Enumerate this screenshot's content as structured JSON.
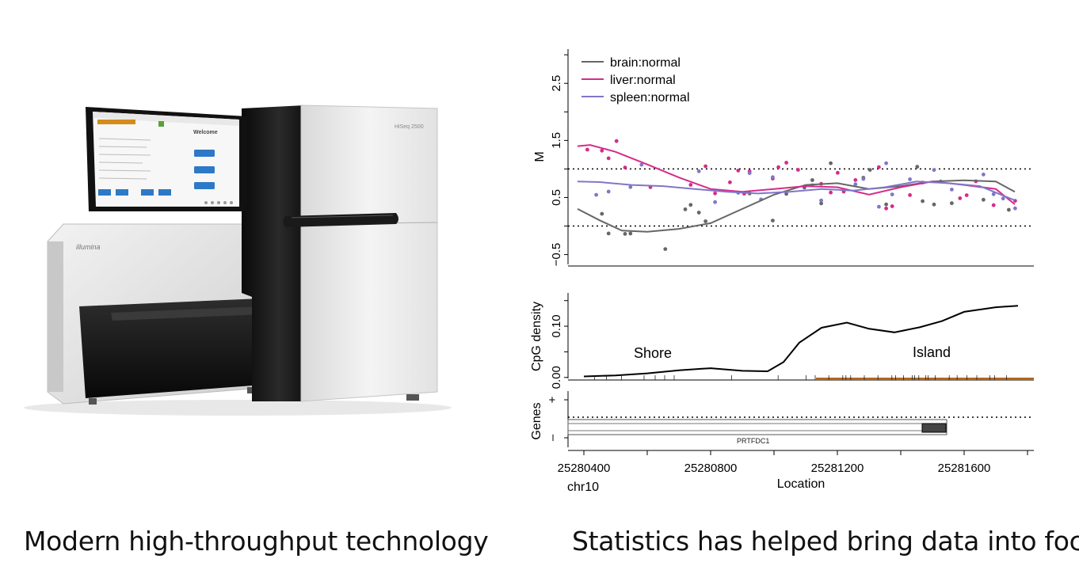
{
  "captions": {
    "left": "Modern high-throughput technology",
    "right": "Statistics has helped bring data into focus"
  },
  "machine": {
    "brand": "illumina",
    "model": "HiSeq 2500",
    "screen_title": "Welcome"
  },
  "colors": {
    "brain": "#666666",
    "liver": "#d62b8a",
    "spleen": "#7f77c9",
    "cpg_rug": "#b5651d"
  },
  "chart_data": [
    {
      "type": "scatter",
      "ylabel": "M",
      "yticks": [
        "−0.5",
        "0.5",
        "1.5",
        "2.5"
      ],
      "ytick_values": [
        -0.5,
        0.5,
        1.5,
        2.5
      ],
      "ylim": [
        -0.7,
        3.1
      ],
      "xlim": [
        25280350,
        25281820
      ],
      "reference_lines": [
        0,
        1
      ],
      "legend": [
        "brain:normal",
        "liver:normal",
        "spleen:normal"
      ],
      "legend_placement": "top-left",
      "series": [
        {
          "name": "brain:normal",
          "color": "#666666",
          "smooth_x": [
            25280380,
            25280450,
            25280520,
            25280600,
            25280700,
            25280800,
            25280900,
            25281000,
            25281100,
            25281200,
            25281300,
            25281400,
            25281500,
            25281600,
            25281700,
            25281760
          ],
          "smooth_y": [
            0.3,
            0.1,
            -0.08,
            -0.1,
            -0.05,
            0.05,
            0.3,
            0.55,
            0.72,
            0.75,
            0.65,
            0.7,
            0.78,
            0.8,
            0.78,
            0.6
          ]
        },
        {
          "name": "liver:normal",
          "color": "#d62b8a",
          "smooth_x": [
            25280380,
            25280420,
            25280500,
            25280600,
            25280700,
            25280800,
            25280900,
            25281000,
            25281100,
            25281200,
            25281300,
            25281400,
            25281500,
            25281600,
            25281700,
            25281760
          ],
          "smooth_y": [
            1.4,
            1.42,
            1.3,
            1.08,
            0.85,
            0.65,
            0.6,
            0.65,
            0.7,
            0.68,
            0.55,
            0.68,
            0.78,
            0.72,
            0.65,
            0.38
          ]
        },
        {
          "name": "spleen:normal",
          "color": "#7f77c9",
          "smooth_x": [
            25280380,
            25280450,
            25280550,
            25280650,
            25280750,
            25280850,
            25280950,
            25281050,
            25281150,
            25281250,
            25281350,
            25281450,
            25281550,
            25281650,
            25281760
          ],
          "smooth_y": [
            0.78,
            0.77,
            0.72,
            0.7,
            0.65,
            0.6,
            0.57,
            0.6,
            0.65,
            0.62,
            0.68,
            0.78,
            0.75,
            0.7,
            0.45
          ]
        }
      ]
    },
    {
      "type": "line",
      "ylabel": "CpG density",
      "yticks": [
        "0.00",
        "0.10"
      ],
      "ytick_values": [
        0,
        0.1
      ],
      "ylim": [
        -0.005,
        0.165
      ],
      "annotations": [
        "Shore",
        "Island"
      ],
      "x": [
        25280400,
        25280500,
        25280600,
        25280700,
        25280800,
        25280900,
        25280980,
        25281030,
        25281080,
        25281150,
        25281230,
        25281300,
        25281380,
        25281460,
        25281530,
        25281600,
        25281700,
        25281770
      ],
      "y": [
        0.002,
        0.004,
        0.008,
        0.014,
        0.018,
        0.013,
        0.012,
        0.03,
        0.068,
        0.097,
        0.107,
        0.095,
        0.088,
        0.098,
        0.11,
        0.128,
        0.137,
        0.14
      ]
    },
    {
      "type": "other",
      "ylabel": "Genes",
      "yticks": [
        "+",
        "–"
      ],
      "gene_label": "PRTFDC1",
      "xlabel": "Location",
      "chromosome": "chr10",
      "xticks": [
        "25280400",
        "25280800",
        "25281200",
        "25281600"
      ],
      "xtick_values": [
        25280400,
        25280800,
        25281200,
        25281600
      ]
    }
  ]
}
